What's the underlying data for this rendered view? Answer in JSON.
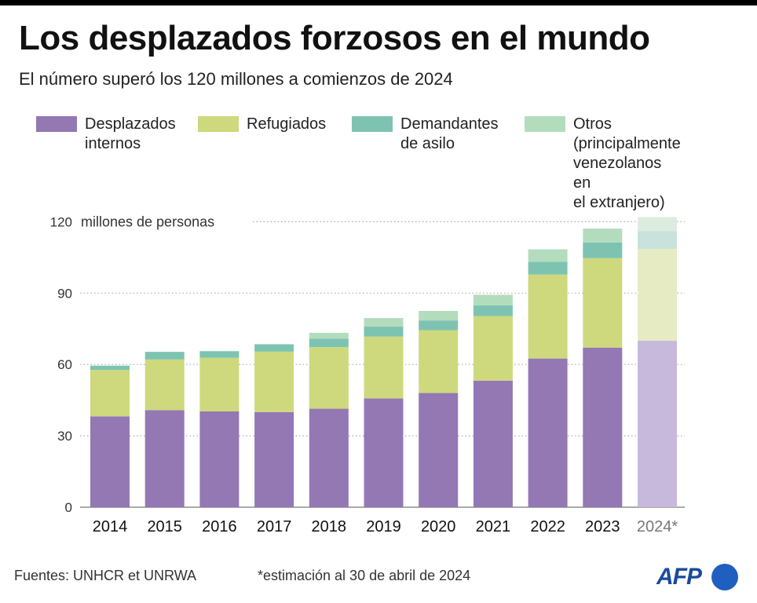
{
  "header": {
    "title": "Los desplazados forzosos en el mundo",
    "subtitle": "El número superó los 120 millones a comienzos de 2024"
  },
  "legend": [
    {
      "label": "Desplazados\ninternos",
      "color": "#9378b4"
    },
    {
      "label": "Refugiados",
      "color": "#cdd97c"
    },
    {
      "label": "Demandantes\nde asilo",
      "color": "#7ec3b2"
    },
    {
      "label": "Otros\n(principalmente\nvenezolanos en\nel extranjero)",
      "color": "#b3dcbd"
    }
  ],
  "footer": {
    "sources": "Fuentes: UNHCR et UNRWA",
    "note": "*estimación al 30 de abril de 2024"
  },
  "logo": {
    "text": "AFP"
  },
  "chart_data": {
    "type": "bar",
    "stacked": true,
    "unit_label": "millones de personas",
    "categories": [
      "2014",
      "2015",
      "2016",
      "2017",
      "2018",
      "2019",
      "2020",
      "2021",
      "2022",
      "2023",
      "2024*"
    ],
    "estimated_category": "2024*",
    "y_ticks": [
      "0",
      "30",
      "60",
      "90",
      "120"
    ],
    "ylim": [
      0,
      122
    ],
    "grid": "dotted horizontal",
    "series": [
      {
        "name": "Desplazados internos",
        "color": "#9378b4",
        "estimate_color": "#c6b9dc",
        "values": [
          38.2,
          40.8,
          40.3,
          40.0,
          41.4,
          45.7,
          48.0,
          53.2,
          62.5,
          67.1,
          70.0
        ]
      },
      {
        "name": "Refugiados",
        "color": "#cdd97c",
        "estimate_color": "#e6ebc3",
        "values": [
          19.5,
          21.3,
          22.5,
          25.4,
          25.9,
          26.0,
          26.4,
          27.1,
          35.3,
          37.6,
          38.5
        ]
      },
      {
        "name": "Demandantes de asilo",
        "color": "#7ec3b2",
        "estimate_color": "#c9e2dc",
        "values": [
          1.8,
          3.2,
          2.8,
          3.1,
          3.5,
          4.2,
          4.1,
          4.6,
          5.4,
          6.6,
          7.5
        ]
      },
      {
        "name": "Otros (principalmente venezolanos en el extranjero)",
        "color": "#b3dcbd",
        "estimate_color": "#dcede0",
        "values": [
          0,
          0,
          0,
          0,
          2.5,
          3.6,
          4.0,
          4.4,
          5.2,
          5.8,
          6.0
        ]
      }
    ]
  }
}
